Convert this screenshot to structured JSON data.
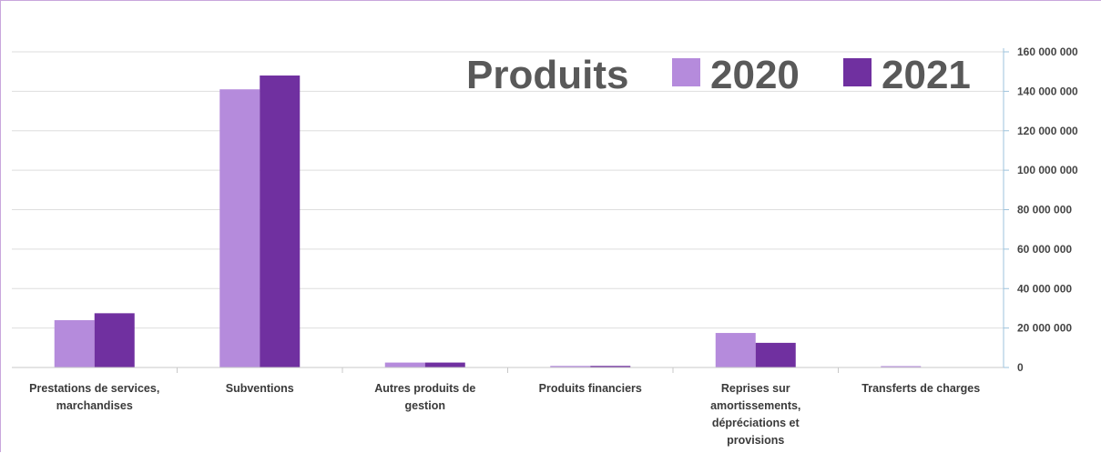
{
  "chart_data": {
    "type": "bar",
    "title": "Produits",
    "categories": [
      [
        "Prestations de services,",
        "marchandises"
      ],
      [
        "Subventions"
      ],
      [
        "Autres produits de",
        "gestion"
      ],
      [
        "Produits financiers"
      ],
      [
        "Reprises sur",
        "amortissements,",
        "dépréciations et",
        "provisions"
      ],
      [
        "Transferts de charges"
      ]
    ],
    "series": [
      {
        "name": "2020",
        "color": "#b58bdc",
        "values": [
          24000000,
          141000000,
          2500000,
          800000,
          17500000,
          700000
        ]
      },
      {
        "name": "2021",
        "color": "#7030a0",
        "values": [
          27500000,
          148000000,
          2500000,
          800000,
          12500000,
          0
        ]
      }
    ],
    "ylim": [
      0,
      160000000
    ],
    "yticks": [
      0,
      20000000,
      40000000,
      60000000,
      80000000,
      100000000,
      120000000,
      140000000,
      160000000
    ],
    "ytick_labels": [
      "0",
      "20 000 000",
      "40 000 000",
      "60 000 000",
      "80 000 000",
      "100 000 000",
      "120 000 000",
      "140 000 000",
      "160 000 000"
    ],
    "y_axis_side": "right",
    "grid": true,
    "legend": "top-right"
  }
}
